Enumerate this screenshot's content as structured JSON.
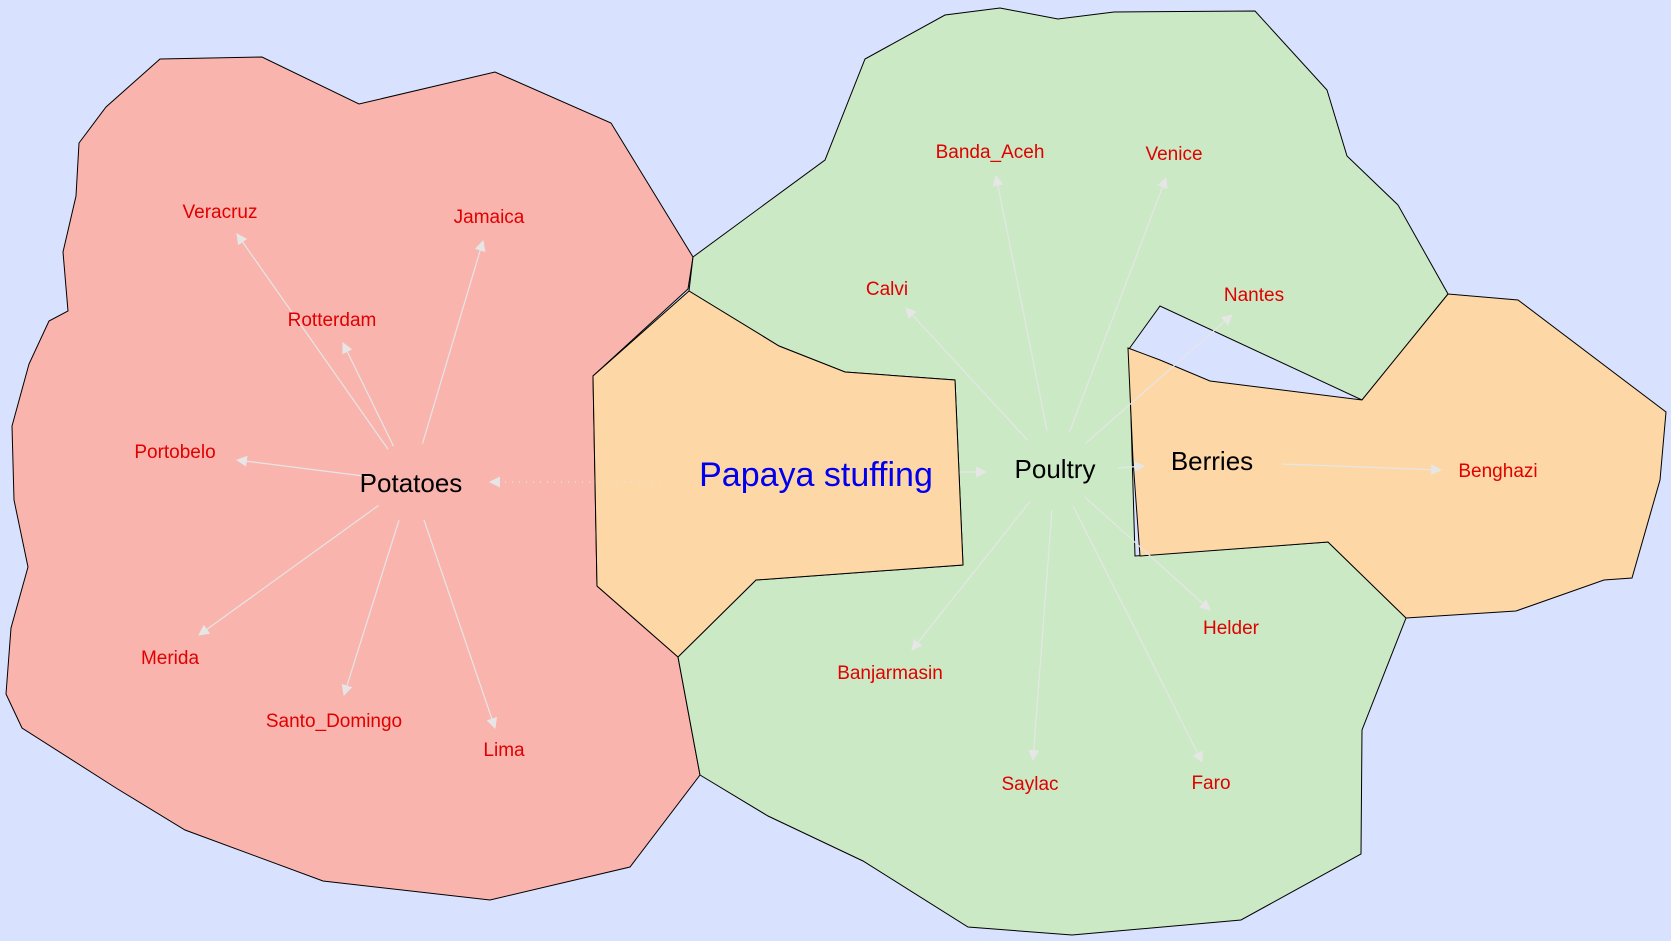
{
  "colors": {
    "background": "#d8e1fd",
    "potatoes_region": "#fab4ae",
    "poultry_region": "#cbe9c5",
    "papaya_region": "#fdd7a6",
    "berries_region": "#fdd7a6",
    "city_label": "#e00000",
    "center_label": "#0000ee",
    "edge": "#e6e6e6"
  },
  "nodes": {
    "papaya": "Papaya stuffing",
    "potatoes": "Potatoes",
    "poultry": "Poultry",
    "berries": "Berries"
  },
  "cities": {
    "veracruz": "Veracruz",
    "jamaica": "Jamaica",
    "rotterdam": "Rotterdam",
    "portobelo": "Portobelo",
    "merida": "Merida",
    "santo_domingo": "Santo_Domingo",
    "lima": "Lima",
    "banda_aceh": "Banda_Aceh",
    "venice": "Venice",
    "calvi": "Calvi",
    "nantes": "Nantes",
    "banjarmasin": "Banjarmasin",
    "helder": "Helder",
    "saylac": "Saylac",
    "faro": "Faro",
    "benghazi": "Benghazi"
  },
  "edges": [
    {
      "from": "papaya",
      "to": "potatoes",
      "style": "dotted"
    },
    {
      "from": "papaya",
      "to": "poultry",
      "style": "solid"
    },
    {
      "from": "poultry",
      "to": "berries",
      "style": "solid"
    },
    {
      "from": "potatoes",
      "to": "veracruz",
      "style": "solid"
    },
    {
      "from": "potatoes",
      "to": "jamaica",
      "style": "solid"
    },
    {
      "from": "potatoes",
      "to": "rotterdam",
      "style": "solid"
    },
    {
      "from": "potatoes",
      "to": "portobelo",
      "style": "solid"
    },
    {
      "from": "potatoes",
      "to": "merida",
      "style": "solid"
    },
    {
      "from": "potatoes",
      "to": "santo_domingo",
      "style": "solid"
    },
    {
      "from": "potatoes",
      "to": "lima",
      "style": "solid"
    },
    {
      "from": "poultry",
      "to": "banda_aceh",
      "style": "solid"
    },
    {
      "from": "poultry",
      "to": "venice",
      "style": "solid"
    },
    {
      "from": "poultry",
      "to": "calvi",
      "style": "solid"
    },
    {
      "from": "poultry",
      "to": "nantes",
      "style": "solid"
    },
    {
      "from": "poultry",
      "to": "banjarmasin",
      "style": "solid"
    },
    {
      "from": "poultry",
      "to": "helder",
      "style": "solid"
    },
    {
      "from": "poultry",
      "to": "saylac",
      "style": "solid"
    },
    {
      "from": "poultry",
      "to": "faro",
      "style": "solid"
    },
    {
      "from": "berries",
      "to": "benghazi",
      "style": "solid"
    }
  ]
}
